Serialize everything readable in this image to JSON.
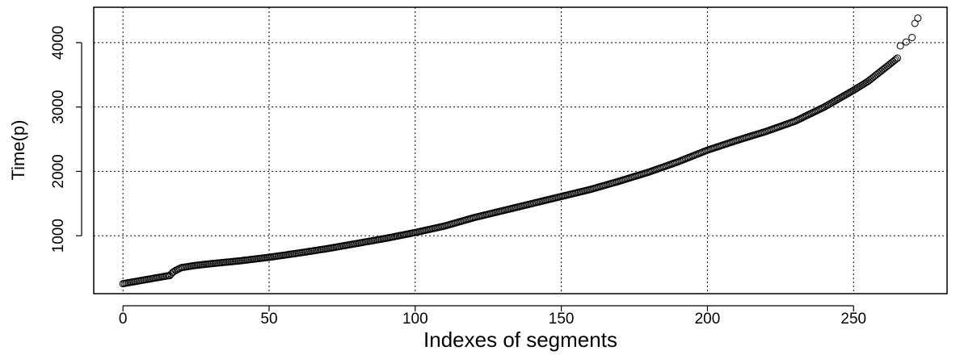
{
  "chart_data": {
    "type": "scatter",
    "title": "",
    "xlabel": "Indexes of segments",
    "ylabel": "Time(p)",
    "xlim": [
      -10,
      282
    ],
    "ylim": [
      100,
      4550
    ],
    "xticks": [
      0,
      50,
      100,
      150,
      200,
      250
    ],
    "yticks": [
      1000,
      2000,
      3000,
      4000
    ],
    "grid": true,
    "marker": "open-circle",
    "series": [
      {
        "points": [
          [
            0,
            255
          ],
          [
            5,
            295
          ],
          [
            10,
            335
          ],
          [
            15,
            375
          ],
          [
            16,
            380
          ],
          [
            17,
            430
          ],
          [
            18,
            460
          ],
          [
            20,
            505
          ],
          [
            25,
            540
          ],
          [
            30,
            565
          ],
          [
            40,
            610
          ],
          [
            50,
            665
          ],
          [
            60,
            730
          ],
          [
            70,
            800
          ],
          [
            80,
            880
          ],
          [
            90,
            960
          ],
          [
            100,
            1050
          ],
          [
            110,
            1150
          ],
          [
            120,
            1280
          ],
          [
            130,
            1390
          ],
          [
            140,
            1500
          ],
          [
            150,
            1610
          ],
          [
            160,
            1720
          ],
          [
            170,
            1850
          ],
          [
            180,
            1990
          ],
          [
            190,
            2150
          ],
          [
            200,
            2330
          ],
          [
            210,
            2480
          ],
          [
            220,
            2620
          ],
          [
            230,
            2780
          ],
          [
            240,
            3000
          ],
          [
            250,
            3260
          ],
          [
            255,
            3400
          ],
          [
            260,
            3580
          ],
          [
            265,
            3760
          ],
          [
            266,
            3950
          ],
          [
            268,
            4010
          ],
          [
            270,
            4080
          ],
          [
            271,
            4300
          ],
          [
            272,
            4380
          ]
        ]
      }
    ]
  }
}
